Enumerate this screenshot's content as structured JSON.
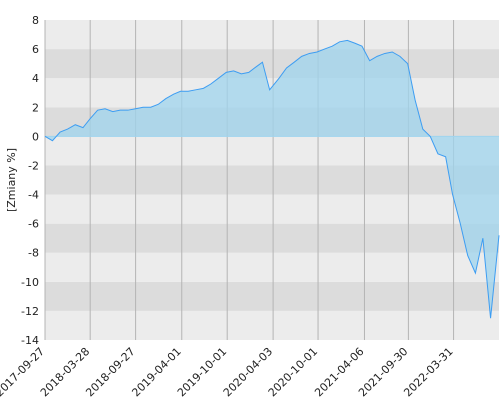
{
  "chart_data": {
    "type": "area",
    "y_label": "[Zmiany %]",
    "x": [
      "2017-09-27",
      "2017-10-27",
      "2017-11-27",
      "2017-12-27",
      "2018-01-27",
      "2018-02-27",
      "2018-03-27",
      "2018-04-27",
      "2018-05-27",
      "2018-06-27",
      "2018-07-27",
      "2018-08-27",
      "2018-09-27",
      "2018-10-27",
      "2018-11-27",
      "2018-12-27",
      "2019-01-27",
      "2019-02-27",
      "2019-03-27",
      "2019-04-27",
      "2019-05-27",
      "2019-06-27",
      "2019-07-27",
      "2019-08-27",
      "2019-09-27",
      "2019-10-27",
      "2019-11-27",
      "2019-12-27",
      "2020-01-27",
      "2020-02-20",
      "2020-03-20",
      "2020-04-27",
      "2020-05-27",
      "2020-06-27",
      "2020-07-27",
      "2020-08-27",
      "2020-09-27",
      "2020-10-27",
      "2020-11-27",
      "2020-12-27",
      "2021-01-27",
      "2021-02-27",
      "2021-03-27",
      "2021-04-27",
      "2021-05-27",
      "2021-06-27",
      "2021-07-27",
      "2021-08-27",
      "2021-09-27",
      "2021-10-27",
      "2021-11-27",
      "2021-12-27",
      "2022-01-27",
      "2022-02-27",
      "2022-03-27",
      "2022-04-27",
      "2022-05-27",
      "2022-06-27",
      "2022-07-27",
      "2022-08-27",
      "2022-09-30"
    ],
    "values": [
      0,
      -0.3,
      0.3,
      0.5,
      0.8,
      0.6,
      1.2,
      1.8,
      1.9,
      1.7,
      1.8,
      1.8,
      1.9,
      2.0,
      2.0,
      2.2,
      2.6,
      2.9,
      3.1,
      3.1,
      3.2,
      3.3,
      3.6,
      4.0,
      4.4,
      4.5,
      4.3,
      4.4,
      4.8,
      5.1,
      3.2,
      4.0,
      4.7,
      5.1,
      5.5,
      5.7,
      5.8,
      6.0,
      6.2,
      6.5,
      6.6,
      6.4,
      6.2,
      5.2,
      5.5,
      5.7,
      5.8,
      5.5,
      5.0,
      2.5,
      0.5,
      0.0,
      -1.2,
      -1.4,
      -4.0,
      -6.0,
      -8.2,
      -9.4,
      -7.0,
      -12.5,
      -6.8
    ],
    "color": "#3d9df2",
    "fill": "#9fd4ee",
    "xlim": [
      "2017-09-27",
      "2022-09-30"
    ],
    "xticks": [
      "2017-09-27",
      "2018-03-28",
      "2018-09-27",
      "2019-04-01",
      "2019-10-01",
      "2020-04-03",
      "2020-10-01",
      "2021-04-06",
      "2021-09-30",
      "2022-03-31"
    ],
    "ylim": [
      -14,
      8
    ],
    "yticks": [
      -14,
      -12,
      -10,
      -8,
      -6,
      -4,
      -2,
      0,
      2,
      4,
      6,
      8
    ],
    "grid": true
  }
}
